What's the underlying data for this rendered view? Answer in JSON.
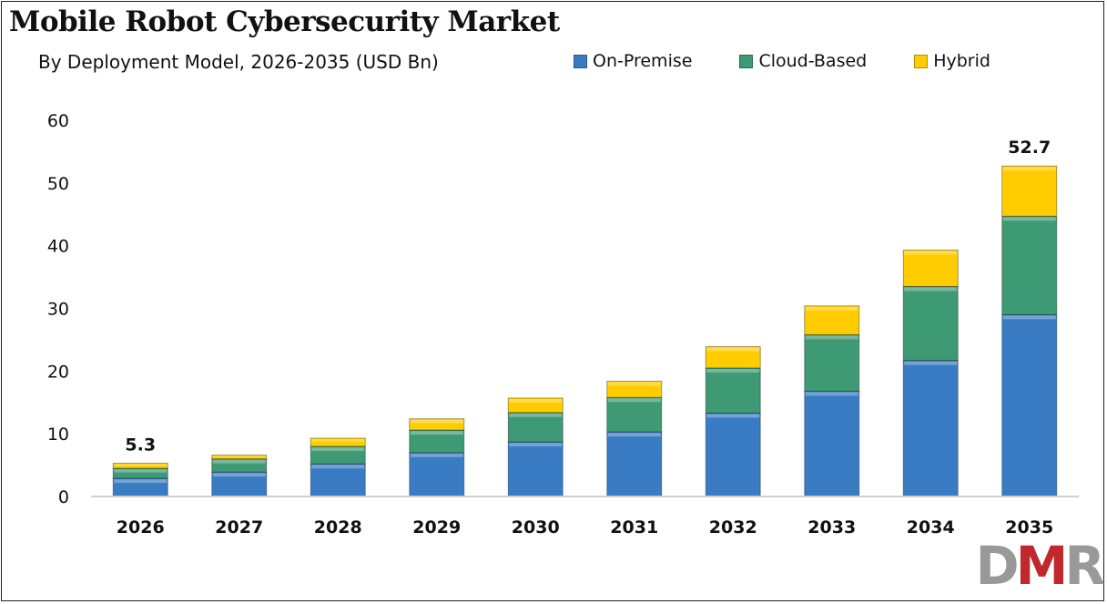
{
  "chart_data": {
    "type": "bar",
    "stacked": true,
    "title": "Mobile Robot Cybersecurity Market",
    "subtitle": "By Deployment Model, 2026-2035 (USD Bn)",
    "xlabel": "",
    "ylabel": "",
    "ylim": [
      0,
      60
    ],
    "yticks": [
      0,
      10,
      20,
      30,
      40,
      50,
      60
    ],
    "grid": false,
    "legend_position": "top-right",
    "categories": [
      "2026",
      "2027",
      "2028",
      "2029",
      "2030",
      "2031",
      "2032",
      "2033",
      "2034",
      "2035"
    ],
    "series": [
      {
        "name": "On-Premise",
        "color": "#3a7cc4",
        "values": [
          2.9,
          3.9,
          5.2,
          7.0,
          8.7,
          10.3,
          13.3,
          16.8,
          21.7,
          29.0
        ]
      },
      {
        "name": "Cloud-Based",
        "color": "#3e9a74",
        "values": [
          1.6,
          2.1,
          2.8,
          3.6,
          4.7,
          5.5,
          7.2,
          9.0,
          11.8,
          15.7
        ]
      },
      {
        "name": "Hybrid",
        "color": "#ffcc00",
        "values": [
          0.8,
          0.6,
          1.3,
          1.8,
          2.3,
          2.6,
          3.4,
          4.6,
          5.8,
          8.0
        ]
      }
    ],
    "data_labels": [
      {
        "category": "2026",
        "text": "5.3"
      },
      {
        "category": "2035",
        "text": "52.7"
      }
    ]
  },
  "logo": {
    "text": "DMR",
    "colors": [
      "#999999",
      "#c0282d",
      "#999999"
    ]
  }
}
